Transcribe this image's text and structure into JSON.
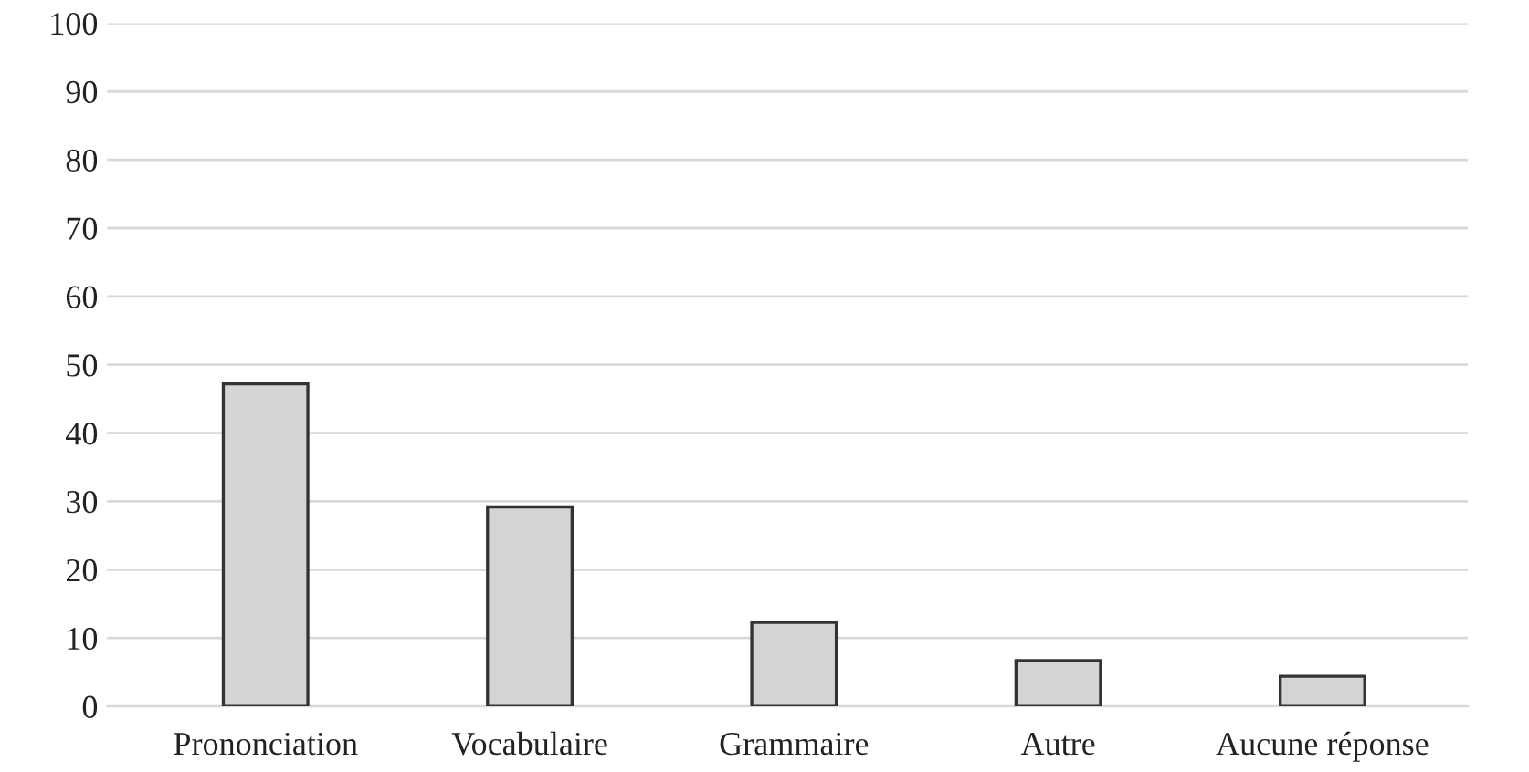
{
  "chart_data": {
    "type": "bar",
    "categories": [
      "Prononciation",
      "Vocabulaire",
      "Grammaire",
      "Autre",
      "Aucune réponse"
    ],
    "values": [
      47.2,
      29.2,
      12.3,
      6.7,
      4.4
    ],
    "color": "#d4d4d4",
    "ylim": [
      0,
      100
    ],
    "yticks": [
      0,
      10,
      20,
      30,
      40,
      50,
      60,
      70,
      80,
      90,
      100
    ],
    "grid": "y"
  }
}
